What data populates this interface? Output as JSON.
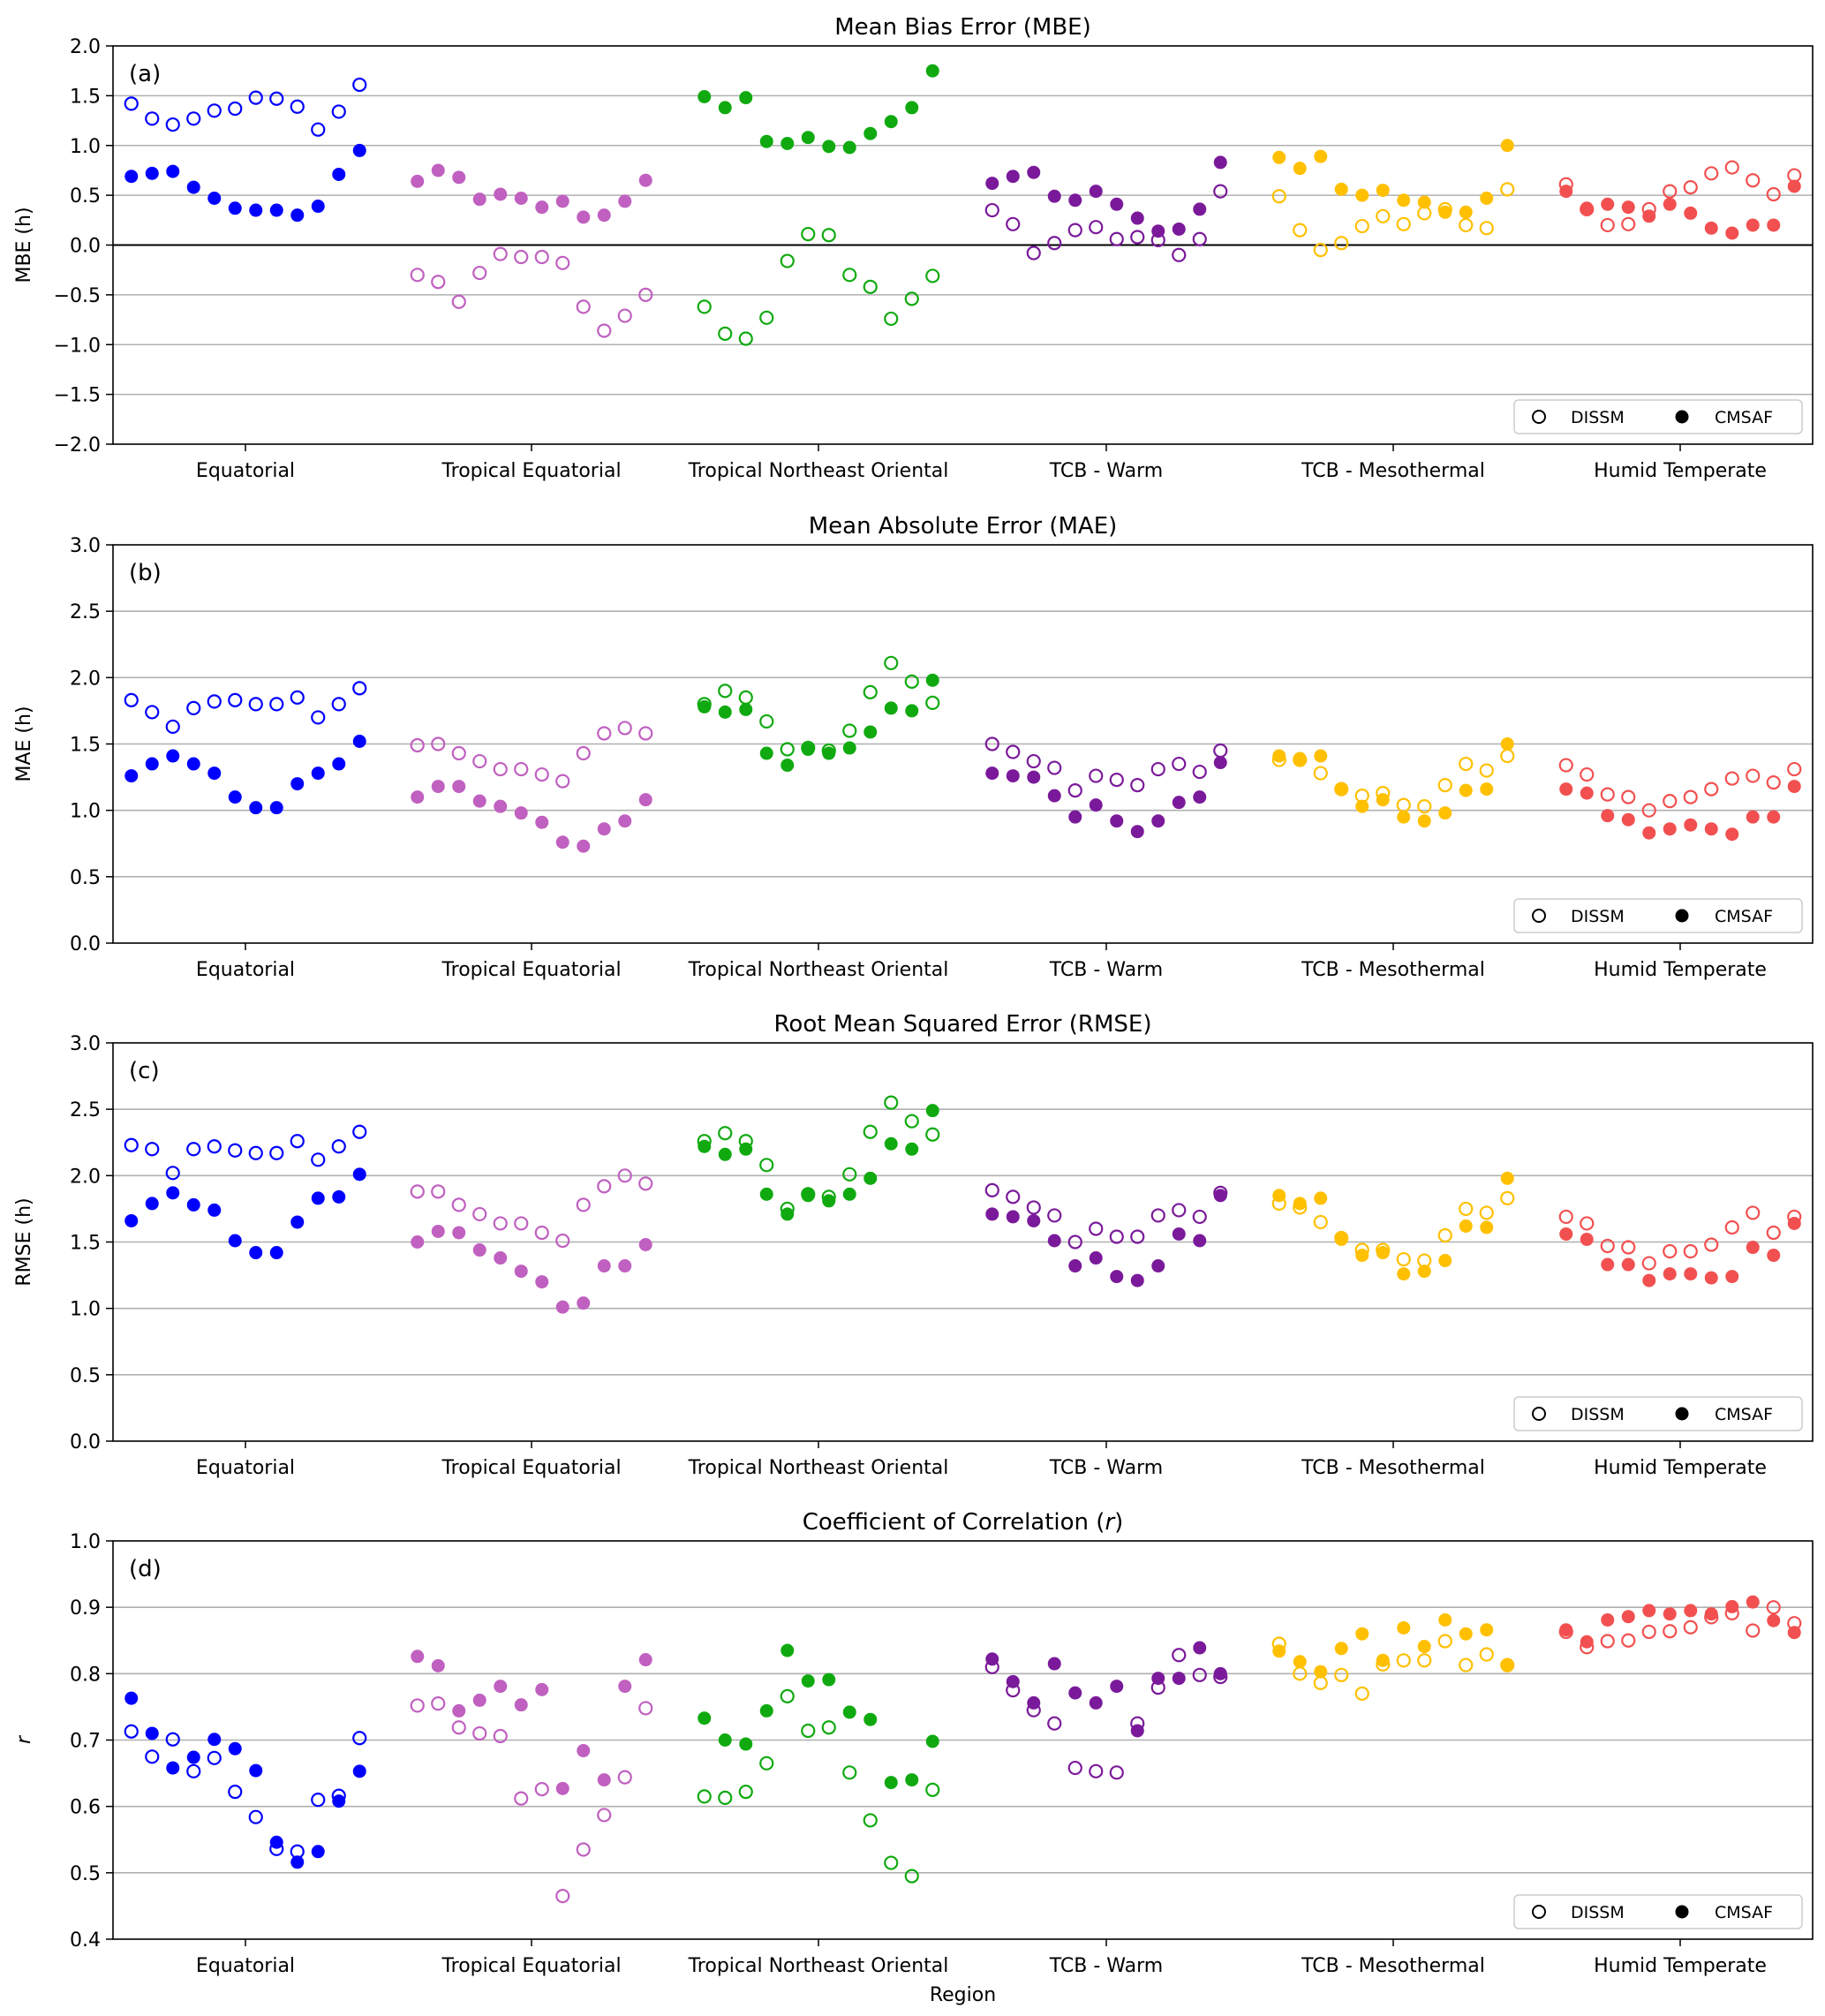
{
  "figure": {
    "xlabel": "Region",
    "regions": [
      "Equatorial",
      "Tropical Equatorial",
      "Tropical Northeast Oriental",
      "TCB - Warm",
      "TCB - Mesothermal",
      "Humid Temperate"
    ],
    "colors": {
      "Equatorial": "#0000ff",
      "Tropical Equatorial": "#c060c0",
      "Tropical Northeast Oriental": "#10aa10",
      "TCB - Warm": "#7a1a9a",
      "TCB - Mesothermal": "#ffc000",
      "Humid Temperate": "#f25050"
    },
    "legend": {
      "open_label": "DISSM",
      "filled_label": "CMSAF",
      "location": "lower right"
    }
  },
  "chart_data": [
    {
      "type": "scatter",
      "panel": "(a)",
      "title": "Mean Bias Error (MBE)",
      "ylabel": "MBE (h)",
      "ylim": [
        -2.0,
        2.0
      ],
      "yticks": [
        "2.0",
        "1.5",
        "1.0",
        "0.5",
        "0.0",
        "−0.5",
        "−1.0",
        "−1.5",
        "−2.0"
      ],
      "grid": true,
      "zero_line": true,
      "series": [
        {
          "region": "Equatorial",
          "DISSM": [
            1.42,
            1.27,
            1.21,
            1.27,
            1.35,
            1.37,
            1.48,
            1.47,
            1.39,
            1.16,
            1.34,
            1.61
          ],
          "CMSAF": [
            0.69,
            0.72,
            0.74,
            0.58,
            0.47,
            0.37,
            0.35,
            0.35,
            0.3,
            0.39,
            0.71,
            0.95
          ]
        },
        {
          "region": "Tropical Equatorial",
          "DISSM": [
            -0.3,
            -0.37,
            -0.57,
            -0.28,
            -0.09,
            -0.12,
            -0.12,
            -0.18,
            -0.62,
            -0.86,
            -0.71,
            -0.5
          ],
          "CMSAF": [
            0.64,
            0.75,
            0.68,
            0.46,
            0.51,
            0.47,
            0.38,
            0.44,
            0.28,
            0.3,
            0.44,
            0.65
          ]
        },
        {
          "region": "Tropical Northeast Oriental",
          "DISSM": [
            -0.62,
            -0.89,
            -0.94,
            -0.73,
            -0.16,
            0.11,
            0.1,
            -0.3,
            -0.42,
            -0.74,
            -0.54,
            -0.31
          ],
          "CMSAF": [
            1.49,
            1.38,
            1.48,
            1.04,
            1.02,
            1.08,
            0.99,
            0.98,
            1.12,
            1.24,
            1.38,
            1.75
          ]
        },
        {
          "region": "TCB - Warm",
          "DISSM": [
            0.35,
            0.21,
            -0.08,
            0.02,
            0.15,
            0.18,
            0.06,
            0.08,
            0.05,
            -0.1,
            0.06,
            0.54
          ],
          "CMSAF": [
            0.62,
            0.69,
            0.73,
            0.49,
            0.45,
            0.54,
            0.41,
            0.27,
            0.14,
            0.16,
            0.36,
            0.83
          ]
        },
        {
          "region": "TCB - Mesothermal",
          "DISSM": [
            0.49,
            0.15,
            -0.05,
            0.02,
            0.19,
            0.29,
            0.21,
            0.32,
            0.36,
            0.2,
            0.17,
            0.56
          ],
          "CMSAF": [
            0.88,
            0.77,
            0.89,
            0.56,
            0.5,
            0.55,
            0.45,
            0.43,
            0.33,
            0.33,
            0.47,
            1.0
          ]
        },
        {
          "region": "Humid Temperate",
          "DISSM": [
            0.61,
            0.36,
            0.2,
            0.21,
            0.36,
            0.54,
            0.58,
            0.72,
            0.78,
            0.65,
            0.51,
            0.7
          ],
          "CMSAF": [
            0.54,
            0.37,
            0.41,
            0.38,
            0.29,
            0.41,
            0.32,
            0.17,
            0.12,
            0.2,
            0.2,
            0.59
          ]
        }
      ]
    },
    {
      "type": "scatter",
      "panel": "(b)",
      "title": "Mean Absolute Error (MAE)",
      "ylabel": "MAE (h)",
      "ylim": [
        0.0,
        3.0
      ],
      "yticks": [
        "3.0",
        "2.5",
        "2.0",
        "1.5",
        "1.0",
        "0.5",
        "0.0"
      ],
      "grid": true,
      "series": [
        {
          "region": "Equatorial",
          "DISSM": [
            1.83,
            1.74,
            1.63,
            1.77,
            1.82,
            1.83,
            1.8,
            1.8,
            1.85,
            1.7,
            1.8,
            1.92
          ],
          "CMSAF": [
            1.26,
            1.35,
            1.41,
            1.35,
            1.28,
            1.1,
            1.02,
            1.02,
            1.2,
            1.28,
            1.35,
            1.52
          ]
        },
        {
          "region": "Tropical Equatorial",
          "DISSM": [
            1.49,
            1.5,
            1.43,
            1.37,
            1.31,
            1.31,
            1.27,
            1.22,
            1.43,
            1.58,
            1.62,
            1.58
          ],
          "CMSAF": [
            1.1,
            1.18,
            1.18,
            1.07,
            1.03,
            0.98,
            0.91,
            0.76,
            0.73,
            0.86,
            0.92,
            1.08
          ]
        },
        {
          "region": "Tropical Northeast Oriental",
          "DISSM": [
            1.8,
            1.9,
            1.85,
            1.67,
            1.46,
            1.47,
            1.45,
            1.6,
            1.89,
            2.11,
            1.97,
            1.81
          ],
          "CMSAF": [
            1.78,
            1.74,
            1.76,
            1.43,
            1.34,
            1.46,
            1.43,
            1.47,
            1.59,
            1.77,
            1.75,
            1.98
          ]
        },
        {
          "region": "TCB - Warm",
          "DISSM": [
            1.5,
            1.44,
            1.37,
            1.32,
            1.15,
            1.26,
            1.23,
            1.19,
            1.31,
            1.35,
            1.29,
            1.45
          ],
          "CMSAF": [
            1.28,
            1.26,
            1.25,
            1.11,
            0.95,
            1.04,
            0.92,
            0.84,
            0.92,
            1.06,
            1.1,
            1.36
          ]
        },
        {
          "region": "TCB - Mesothermal",
          "DISSM": [
            1.38,
            1.38,
            1.28,
            1.16,
            1.11,
            1.13,
            1.04,
            1.03,
            1.19,
            1.35,
            1.3,
            1.41
          ],
          "CMSAF": [
            1.41,
            1.39,
            1.41,
            1.16,
            1.03,
            1.08,
            0.95,
            0.92,
            0.98,
            1.15,
            1.16,
            1.5
          ]
        },
        {
          "region": "Humid Temperate",
          "DISSM": [
            1.34,
            1.27,
            1.12,
            1.1,
            1.0,
            1.07,
            1.1,
            1.16,
            1.24,
            1.26,
            1.21,
            1.31
          ],
          "CMSAF": [
            1.16,
            1.13,
            0.96,
            0.93,
            0.83,
            0.86,
            0.89,
            0.86,
            0.82,
            0.95,
            0.95,
            1.18
          ]
        }
      ]
    },
    {
      "type": "scatter",
      "panel": "(c)",
      "title": "Root Mean Squared Error (RMSE)",
      "ylabel": "RMSE (h)",
      "ylim": [
        0.0,
        3.0
      ],
      "yticks": [
        "3.0",
        "2.5",
        "2.0",
        "1.5",
        "1.0",
        "0.5",
        "0.0"
      ],
      "grid": true,
      "series": [
        {
          "region": "Equatorial",
          "DISSM": [
            2.23,
            2.2,
            2.02,
            2.2,
            2.22,
            2.19,
            2.17,
            2.17,
            2.26,
            2.12,
            2.22,
            2.33
          ],
          "CMSAF": [
            1.66,
            1.79,
            1.87,
            1.78,
            1.74,
            1.51,
            1.42,
            1.42,
            1.65,
            1.83,
            1.84,
            2.01
          ]
        },
        {
          "region": "Tropical Equatorial",
          "DISSM": [
            1.88,
            1.88,
            1.78,
            1.71,
            1.64,
            1.64,
            1.57,
            1.51,
            1.78,
            1.92,
            2.0,
            1.94
          ],
          "CMSAF": [
            1.5,
            1.58,
            1.57,
            1.44,
            1.38,
            1.28,
            1.2,
            1.01,
            1.04,
            1.32,
            1.32,
            1.48
          ]
        },
        {
          "region": "Tropical Northeast Oriental",
          "DISSM": [
            2.26,
            2.32,
            2.26,
            2.08,
            1.75,
            1.86,
            1.84,
            2.01,
            2.33,
            2.55,
            2.41,
            2.31
          ],
          "CMSAF": [
            2.22,
            2.16,
            2.2,
            1.86,
            1.71,
            1.85,
            1.81,
            1.86,
            1.98,
            2.24,
            2.2,
            2.49
          ]
        },
        {
          "region": "TCB - Warm",
          "DISSM": [
            1.89,
            1.84,
            1.76,
            1.7,
            1.5,
            1.6,
            1.54,
            1.54,
            1.7,
            1.74,
            1.69,
            1.87
          ],
          "CMSAF": [
            1.71,
            1.69,
            1.66,
            1.51,
            1.32,
            1.38,
            1.24,
            1.21,
            1.32,
            1.56,
            1.51,
            1.85
          ]
        },
        {
          "region": "TCB - Mesothermal",
          "DISSM": [
            1.79,
            1.76,
            1.65,
            1.53,
            1.44,
            1.44,
            1.37,
            1.36,
            1.55,
            1.75,
            1.72,
            1.83
          ],
          "CMSAF": [
            1.85,
            1.79,
            1.83,
            1.52,
            1.4,
            1.42,
            1.26,
            1.28,
            1.36,
            1.62,
            1.61,
            1.98
          ]
        },
        {
          "region": "Humid Temperate",
          "DISSM": [
            1.69,
            1.64,
            1.47,
            1.46,
            1.34,
            1.43,
            1.43,
            1.48,
            1.61,
            1.72,
            1.57,
            1.69
          ],
          "CMSAF": [
            1.56,
            1.52,
            1.33,
            1.33,
            1.21,
            1.26,
            1.26,
            1.23,
            1.24,
            1.46,
            1.4,
            1.64
          ]
        }
      ]
    },
    {
      "type": "scatter",
      "panel": "(d)",
      "title": "Coefficient of Correlation (r)",
      "title_plain": "Coefficient of Correlation (",
      "title_italic": "r",
      "title_close": ")",
      "ylabel": "r",
      "ylim": [
        0.4,
        1.0
      ],
      "yticks": [
        "1.0",
        "0.9",
        "0.8",
        "0.7",
        "0.6",
        "0.5",
        "0.4"
      ],
      "grid": true,
      "series": [
        {
          "region": "Equatorial",
          "DISSM": [
            0.713,
            0.675,
            0.701,
            0.653,
            0.673,
            0.622,
            0.584,
            0.536,
            0.532,
            0.61,
            0.616,
            0.703
          ],
          "CMSAF": [
            0.763,
            0.71,
            0.658,
            0.674,
            0.701,
            0.687,
            0.654,
            0.546,
            0.516,
            0.532,
            0.608,
            0.653
          ]
        },
        {
          "region": "Tropical Equatorial",
          "DISSM": [
            0.752,
            0.755,
            0.719,
            0.71,
            0.706,
            0.612,
            0.626,
            0.465,
            0.535,
            0.587,
            0.644,
            0.748
          ],
          "CMSAF": [
            0.826,
            0.812,
            0.744,
            0.76,
            0.781,
            0.753,
            0.776,
            0.627,
            0.684,
            0.64,
            0.781,
            0.821
          ]
        },
        {
          "region": "Tropical Northeast Oriental",
          "DISSM": [
            0.615,
            0.613,
            0.622,
            0.665,
            0.766,
            0.714,
            0.719,
            0.651,
            0.579,
            0.515,
            0.495,
            0.625
          ],
          "CMSAF": [
            0.733,
            0.7,
            0.694,
            0.744,
            0.835,
            0.789,
            0.791,
            0.742,
            0.731,
            0.636,
            0.64,
            0.698
          ]
        },
        {
          "region": "TCB - Warm",
          "DISSM": [
            0.81,
            0.775,
            0.745,
            0.725,
            0.658,
            0.653,
            0.651,
            0.725,
            0.779,
            0.828,
            0.798,
            0.795
          ],
          "CMSAF": [
            0.822,
            0.788,
            0.756,
            0.815,
            0.771,
            0.756,
            0.781,
            0.714,
            0.793,
            0.793,
            0.839,
            0.8
          ]
        },
        {
          "region": "TCB - Mesothermal",
          "DISSM": [
            0.845,
            0.8,
            0.786,
            0.798,
            0.77,
            0.814,
            0.82,
            0.82,
            0.849,
            0.813,
            0.829,
            0.813
          ],
          "CMSAF": [
            0.834,
            0.818,
            0.803,
            0.838,
            0.86,
            0.82,
            0.869,
            0.841,
            0.881,
            0.86,
            0.866,
            0.812
          ]
        },
        {
          "region": "Humid Temperate",
          "DISSM": [
            0.863,
            0.84,
            0.849,
            0.85,
            0.863,
            0.864,
            0.87,
            0.885,
            0.891,
            0.865,
            0.9,
            0.876
          ],
          "CMSAF": [
            0.866,
            0.848,
            0.881,
            0.886,
            0.895,
            0.89,
            0.895,
            0.89,
            0.901,
            0.908,
            0.88,
            0.862
          ]
        }
      ]
    }
  ]
}
